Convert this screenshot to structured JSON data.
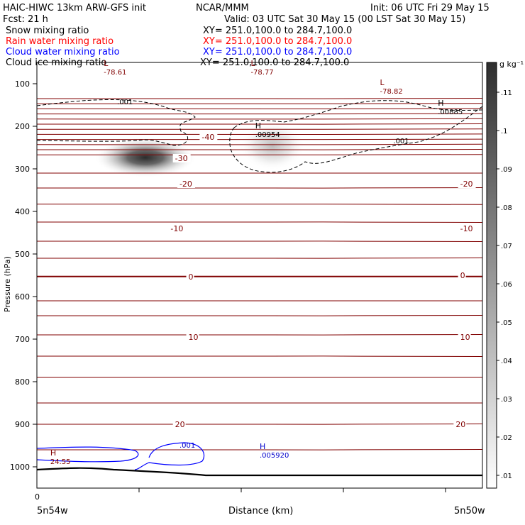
{
  "header": {
    "title": "HAIC-HIWC 13km ARW-GFS init",
    "org": "NCAR/MMM",
    "init": "Init: 06 UTC Fri 29 May 15",
    "fcst": "Fcst:    21 h",
    "valid": "Valid: 03 UTC Sat 30 May 15 (00 LST Sat 30 May 15)"
  },
  "fields": [
    {
      "label": "Snow mixing ratio",
      "xy": "XY= 251.0,100.0 to 284.7,100.0",
      "color": "#000000"
    },
    {
      "label": "Rain water mixing ratio",
      "xy": "XY= 251.0,100.0 to 284.7,100.0",
      "color": "#ff0000"
    },
    {
      "label": "Cloud water mixing ratio",
      "xy": "XY= 251.0,100.0 to 284.7,100.0",
      "color": "#0000ff"
    },
    {
      "label": "Cloud ice mixing ratio",
      "xy": "XY= 251.0,100.0 to 284.7,100.0",
      "color": "#000000"
    }
  ],
  "chart_data": {
    "type": "contour-cross-section",
    "ylabel": "Pressure (hPa)",
    "xlabel": "Distance (km)",
    "x_start_label": "5n54w",
    "x_end_label": "5n50w",
    "x_zero_label": "0",
    "y_ticks": [
      100,
      200,
      300,
      400,
      500,
      600,
      700,
      800,
      900,
      1000
    ],
    "ylim": [
      1050,
      50
    ],
    "colorbar": {
      "unit": "g kg⁻¹",
      "ticks": [
        ".01",
        ".02",
        ".03",
        ".04",
        ".05",
        ".06",
        ".07",
        ".08",
        ".09",
        ".1",
        ".11"
      ]
    },
    "temperature_contour_labels": [
      {
        "value": "-40",
        "p": 225,
        "x": 0.37
      },
      {
        "value": "-30",
        "p": 275,
        "x": 0.31
      },
      {
        "value": "-20",
        "p": 335,
        "x": 0.32
      },
      {
        "value": "-20",
        "p": 335,
        "x": 0.95
      },
      {
        "value": "-10",
        "p": 440,
        "x": 0.3
      },
      {
        "value": "-10",
        "p": 440,
        "x": 0.95
      },
      {
        "value": "0",
        "p": 553,
        "x": 0.34
      },
      {
        "value": "0",
        "p": 550,
        "x": 0.95
      },
      {
        "value": "10",
        "p": 695,
        "x": 0.34
      },
      {
        "value": "10",
        "p": 695,
        "x": 0.95
      },
      {
        "value": "20",
        "p": 900,
        "x": 0.31
      },
      {
        "value": "20",
        "p": 900,
        "x": 0.94
      }
    ],
    "extrema_labels": [
      {
        "kind": "L",
        "value": "-78.61",
        "color": "#800000",
        "p": 75,
        "x": 0.15
      },
      {
        "kind": "L",
        "value": "-78.77",
        "color": "#800000",
        "p": 75,
        "x": 0.48
      },
      {
        "kind": "L",
        "value": "-78.82",
        "color": "#800000",
        "p": 120,
        "x": 0.77
      },
      {
        "kind": "H",
        "value": ".00954",
        "color": "#000000",
        "p": 222,
        "x": 0.49
      },
      {
        "kind": "H",
        "value": ".00885",
        "color": "#000000",
        "p": 168,
        "x": 0.9
      },
      {
        "kind": "H",
        "value": ".005920",
        "color": "#0000cc",
        "p": 975,
        "x": 0.5
      },
      {
        "kind": "H",
        "value": "24.55",
        "color": "#800000",
        "p": 990,
        "x": 0.03
      }
    ],
    "contour_value_labels": [
      {
        "value": ".001",
        "color": "#000000",
        "p": 148,
        "x": 0.18
      },
      {
        "value": ".001",
        "color": "#000000",
        "p": 240,
        "x": 0.8
      },
      {
        "value": ".001",
        "color": "#0000cc",
        "p": 955,
        "x": 0.32
      }
    ]
  }
}
